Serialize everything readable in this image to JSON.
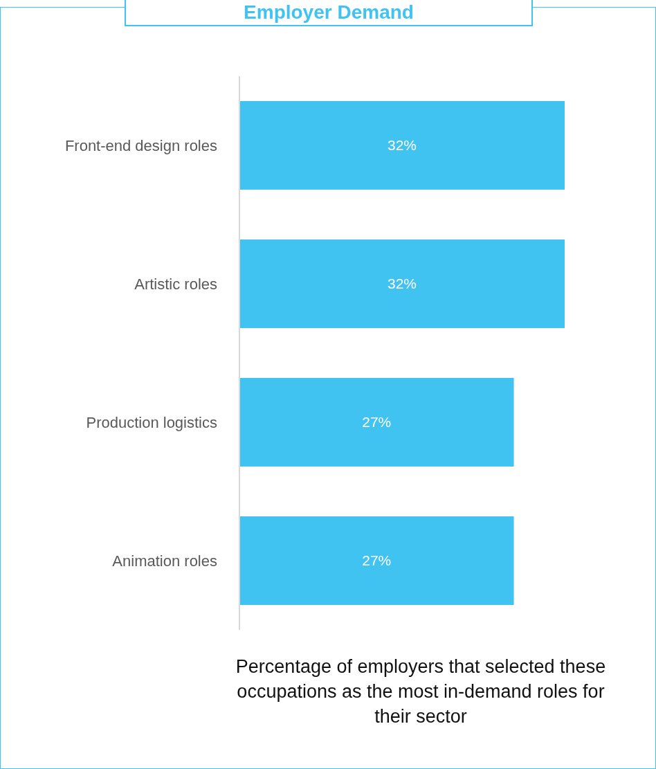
{
  "chart_data": {
    "type": "bar",
    "orientation": "horizontal",
    "title": "Employer Demand",
    "xlabel": "Percentage of employers that selected these occupations as the most in-demand roles for their sector",
    "categories": [
      "Front-end design roles",
      "Artistic roles",
      "Production logistics",
      "Animation roles"
    ],
    "values": [
      32,
      32,
      27,
      27
    ],
    "value_labels": [
      "32%",
      "32%",
      "27%",
      "27%"
    ],
    "color": "#41c3f2"
  }
}
